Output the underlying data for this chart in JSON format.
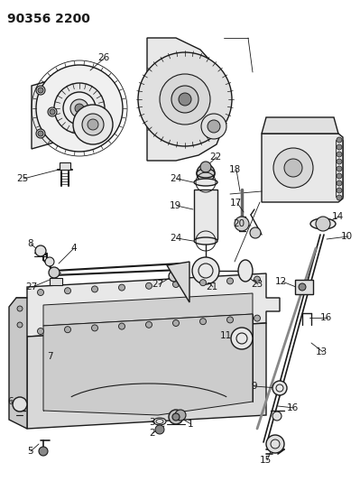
{
  "title": "90356 2200",
  "bg_color": "#ffffff",
  "line_color": "#1a1a1a",
  "title_fontsize": 10,
  "label_fontsize": 7.5,
  "fig_width": 3.99,
  "fig_height": 5.33,
  "dpi": 100
}
